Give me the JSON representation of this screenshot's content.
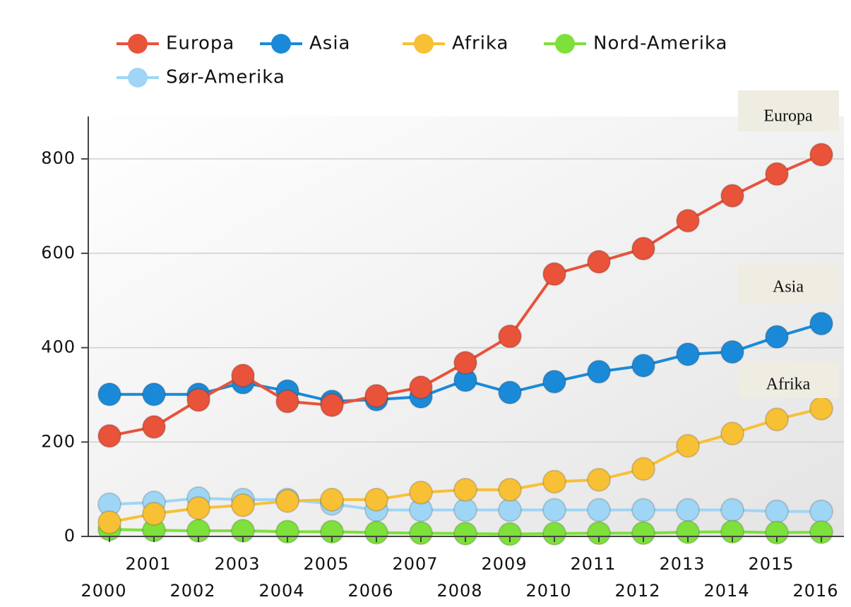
{
  "chart_data": {
    "type": "line",
    "categories": [
      "2000",
      "2001",
      "2002",
      "2003",
      "2004",
      "2005",
      "2006",
      "2007",
      "2008",
      "2009",
      "2010",
      "2011",
      "2012",
      "2013",
      "2014",
      "2015",
      "2016"
    ],
    "series": [
      {
        "name": "Europa",
        "color": "#e8533a",
        "values": [
          213,
          232,
          289,
          341,
          286,
          278,
          298,
          316,
          368,
          424,
          556,
          582,
          610,
          669,
          722,
          768,
          809
        ]
      },
      {
        "name": "Asia",
        "color": "#1a8ad8",
        "values": [
          301,
          301,
          301,
          326,
          308,
          286,
          290,
          296,
          331,
          305,
          328,
          349,
          362,
          386,
          391,
          423,
          451
        ]
      },
      {
        "name": "Afrika",
        "color": "#f8c035",
        "values": [
          30,
          48,
          60,
          66,
          75,
          78,
          78,
          93,
          99,
          99,
          116,
          120,
          143,
          192,
          218,
          248,
          271
        ]
      },
      {
        "name": "Nord-Amerika",
        "color": "#7ee03a",
        "values": [
          15,
          13,
          12,
          12,
          10,
          10,
          8,
          7,
          6,
          5,
          6,
          7,
          7,
          9,
          10,
          8,
          9
        ]
      },
      {
        "name": "Sør-Amerika",
        "color": "#9fd6f5",
        "values": [
          68,
          72,
          81,
          78,
          78,
          69,
          56,
          56,
          56,
          56,
          56,
          56,
          56,
          56,
          56,
          53,
          53
        ]
      }
    ],
    "ylim": [
      0,
      890
    ],
    "yticks": [
      0,
      200,
      400,
      600,
      800
    ],
    "grid": true,
    "annotations": [
      "Europa",
      "Asia",
      "Afrika"
    ]
  }
}
